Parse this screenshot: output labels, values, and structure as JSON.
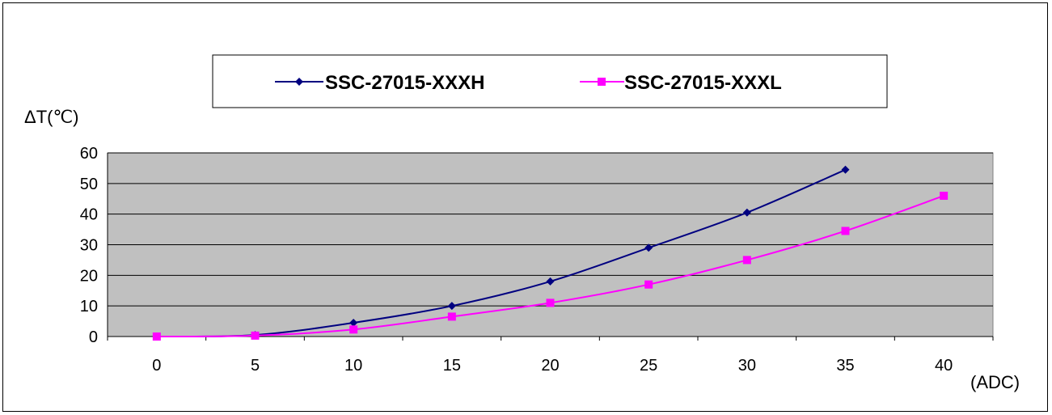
{
  "chart_data": {
    "type": "line",
    "title": "",
    "xlabel": "(ADC)",
    "ylabel": "ΔT(℃)",
    "x": [
      0,
      5,
      10,
      15,
      20,
      25,
      30,
      35,
      40
    ],
    "x_ticks": [
      "0",
      "5",
      "10",
      "15",
      "20",
      "25",
      "30",
      "35",
      "40"
    ],
    "y_ticks": [
      "0",
      "10",
      "20",
      "30",
      "40",
      "50",
      "60"
    ],
    "ylim": [
      0,
      60
    ],
    "grid": "horizontal",
    "plot_background": "#c0c0c0",
    "legend_position": "top",
    "series": [
      {
        "name": "SSC-27015-XXXH",
        "color": "#000080",
        "marker": "diamond",
        "values": [
          0,
          0.5,
          4.5,
          10,
          18,
          29,
          40.5,
          54.5,
          null
        ]
      },
      {
        "name": "SSC-27015-XXXL",
        "color": "#ff00ff",
        "marker": "square",
        "values": [
          0,
          0.3,
          2.3,
          6.5,
          11,
          17,
          25,
          34.5,
          46
        ]
      }
    ]
  }
}
